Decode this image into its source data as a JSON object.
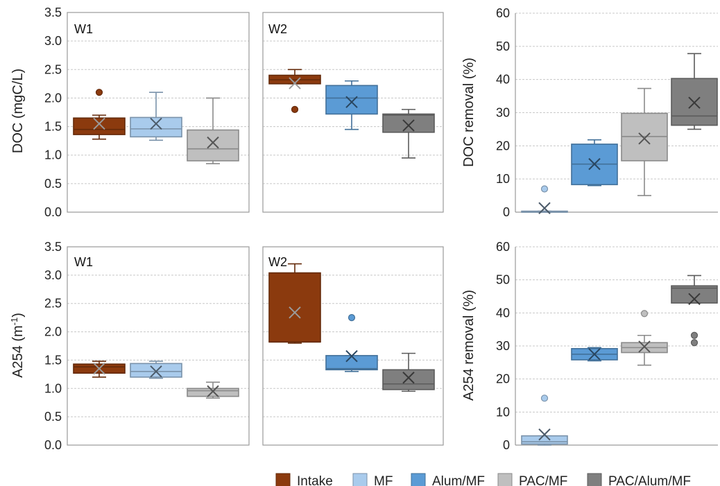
{
  "colors": {
    "Intake": "#8B3A0E",
    "MF": "#A9CBEC",
    "Alum/MF": "#5B9BD5",
    "PAC/MF": "#BFBFBF",
    "PAC/Alum/MF": "#7F7F7F"
  },
  "legend": [
    "Intake",
    "MF",
    "Alum/MF",
    "PAC/MF",
    "PAC/Alum/MF"
  ],
  "chart_data": [
    {
      "type": "box",
      "panel": "W1",
      "ylabel": "DOC (mgC/L)",
      "ylim": [
        0,
        3.5
      ],
      "yticks": [
        "0.0",
        "0.5",
        "1.0",
        "1.5",
        "2.0",
        "2.5",
        "3.0",
        "3.5"
      ],
      "grid": true,
      "series": [
        {
          "name": "Intake",
          "min": 1.28,
          "q1": 1.36,
          "median": 1.45,
          "q3": 1.65,
          "max": 1.7,
          "mean": 1.55,
          "outliers": [
            2.1
          ]
        },
        {
          "name": "MF",
          "min": 1.26,
          "q1": 1.32,
          "median": 1.46,
          "q3": 1.66,
          "max": 2.1,
          "mean": 1.55,
          "outliers": []
        },
        {
          "name": "PAC/MF",
          "min": 0.85,
          "q1": 0.9,
          "median": 1.11,
          "q3": 1.44,
          "max": 2.0,
          "mean": 1.22,
          "outliers": []
        }
      ]
    },
    {
      "type": "box",
      "panel": "W2",
      "ylim": [
        0,
        3.5
      ],
      "grid": true,
      "series": [
        {
          "name": "Intake",
          "min": 2.25,
          "q1": 2.25,
          "median": 2.32,
          "q3": 2.4,
          "max": 2.5,
          "mean": 2.26,
          "outliers": [
            1.8
          ]
        },
        {
          "name": "Alum/MF",
          "min": 1.45,
          "q1": 1.72,
          "median": 2.0,
          "q3": 2.22,
          "max": 2.3,
          "mean": 1.93,
          "outliers": []
        },
        {
          "name": "PAC/Alum/MF",
          "min": 0.95,
          "q1": 1.4,
          "median": 1.7,
          "q3": 1.72,
          "max": 1.8,
          "mean": 1.52,
          "outliers": []
        }
      ]
    },
    {
      "type": "box",
      "ylabel": "DOC removal (%)",
      "ylim": [
        0,
        60
      ],
      "yticks": [
        "0",
        "10",
        "20",
        "30",
        "40",
        "50",
        "60"
      ],
      "grid": true,
      "series": [
        {
          "name": "MF",
          "min": 0,
          "q1": 0,
          "median": 0,
          "q3": 0.3,
          "max": 0.3,
          "mean": 1.2,
          "outliers": [
            7
          ]
        },
        {
          "name": "Alum/MF",
          "min": 8,
          "q1": 8.3,
          "median": 14.5,
          "q3": 20.5,
          "max": 21.8,
          "mean": 14.5,
          "outliers": []
        },
        {
          "name": "PAC/MF",
          "min": 5,
          "q1": 15.5,
          "median": 22.8,
          "q3": 29.8,
          "max": 37.3,
          "mean": 22.2,
          "outliers": []
        },
        {
          "name": "PAC/Alum/MF",
          "min": 25,
          "q1": 26.2,
          "median": 29,
          "q3": 40.3,
          "max": 47.8,
          "mean": 33,
          "outliers": []
        }
      ]
    },
    {
      "type": "box",
      "panel": "W1",
      "ylabel": "A254 (m-1)",
      "ylim": [
        0,
        3.5
      ],
      "yticks": [
        "0.0",
        "0.5",
        "1.0",
        "1.5",
        "2.0",
        "2.5",
        "3.0",
        "3.5"
      ],
      "grid": true,
      "series": [
        {
          "name": "Intake",
          "min": 1.2,
          "q1": 1.27,
          "median": 1.38,
          "q3": 1.43,
          "max": 1.48,
          "mean": 1.35,
          "outliers": []
        },
        {
          "name": "MF",
          "min": 1.18,
          "q1": 1.2,
          "median": 1.3,
          "q3": 1.44,
          "max": 1.48,
          "mean": 1.3,
          "outliers": []
        },
        {
          "name": "PAC/MF",
          "min": 0.83,
          "q1": 0.86,
          "median": 0.96,
          "q3": 1.0,
          "max": 1.11,
          "mean": 0.95,
          "outliers": []
        }
      ]
    },
    {
      "type": "box",
      "panel": "W2",
      "ylim": [
        0,
        3.5
      ],
      "grid": true,
      "series": [
        {
          "name": "Intake",
          "min": 1.8,
          "q1": 1.82,
          "median": 1.82,
          "q3": 3.04,
          "max": 3.2,
          "mean": 2.34,
          "outliers": []
        },
        {
          "name": "Alum/MF",
          "min": 1.3,
          "q1": 1.33,
          "median": 1.35,
          "q3": 1.58,
          "max": 1.58,
          "mean": 1.57,
          "outliers": [
            2.25
          ]
        },
        {
          "name": "PAC/Alum/MF",
          "min": 0.95,
          "q1": 0.98,
          "median": 1.08,
          "q3": 1.33,
          "max": 1.62,
          "mean": 1.19,
          "outliers": []
        }
      ]
    },
    {
      "type": "box",
      "ylabel": "A254 removal (%)",
      "ylim": [
        0,
        60
      ],
      "yticks": [
        "0",
        "10",
        "20",
        "30",
        "40",
        "50",
        "60"
      ],
      "grid": true,
      "series": [
        {
          "name": "MF",
          "min": 0,
          "q1": 0.3,
          "median": 1,
          "q3": 2.8,
          "max": 2.8,
          "mean": 3.2,
          "outliers": [
            14.2
          ]
        },
        {
          "name": "Alum/MF",
          "min": 25.5,
          "q1": 25.8,
          "median": 27.5,
          "q3": 29.2,
          "max": 29.5,
          "mean": 27.5,
          "outliers": []
        },
        {
          "name": "PAC/MF",
          "min": 24.2,
          "q1": 28,
          "median": 29.5,
          "q3": 31,
          "max": 33.2,
          "mean": 29.8,
          "outliers": [
            39.8
          ]
        },
        {
          "name": "PAC/Alum/MF",
          "min": 43,
          "q1": 43,
          "median": 47.5,
          "q3": 48.2,
          "max": 51.3,
          "mean": 44.2,
          "outliers": [
            33.2,
            31
          ]
        }
      ]
    }
  ]
}
